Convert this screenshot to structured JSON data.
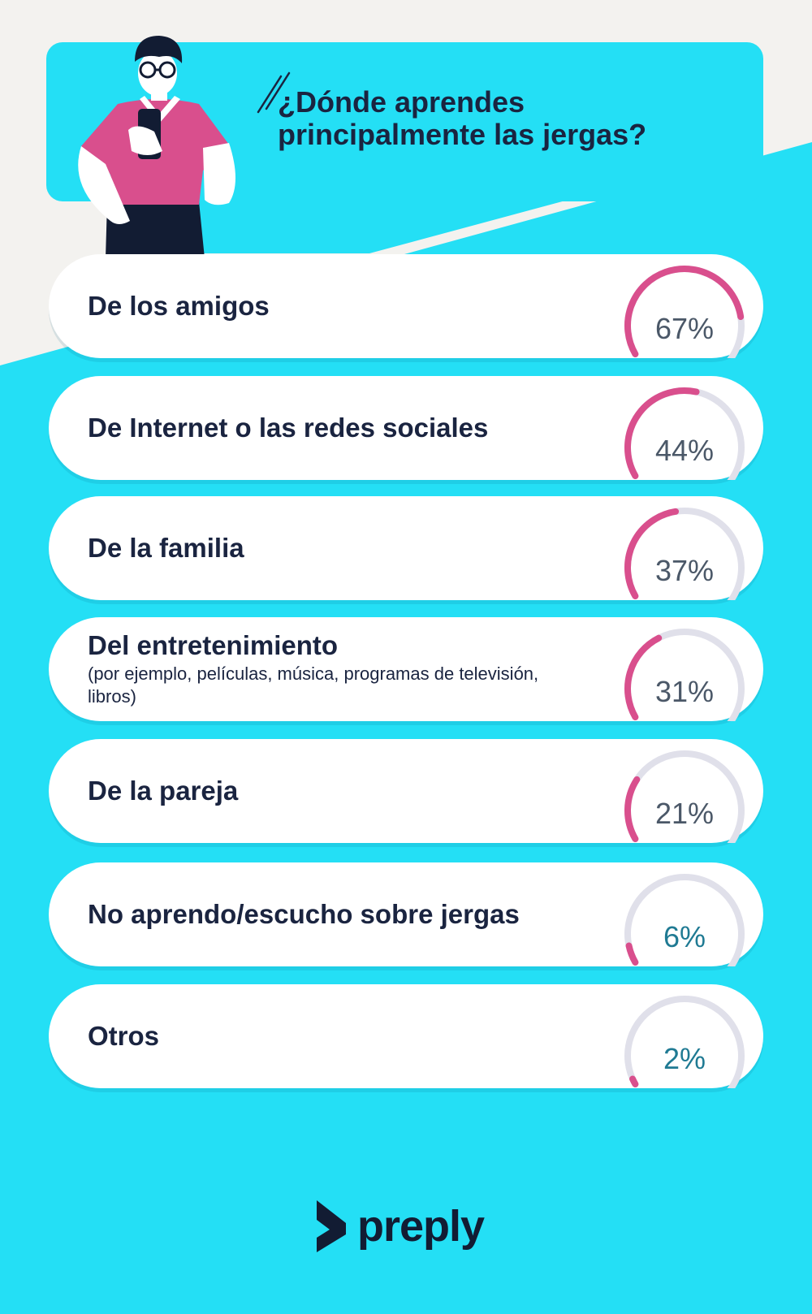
{
  "title": "¿Dónde aprendes principalmente las jergas?",
  "colors": {
    "background": "#24dff5",
    "beige": "#f3f2ef",
    "banner": "#24dff5",
    "card": "#ffffff",
    "text": "#1a2440",
    "arc_fill": "#d94f8d",
    "arc_track": "#e0e0ea",
    "value_text": "#4b5868",
    "value_text_low": "#1f7a93"
  },
  "chart_data": {
    "type": "bar",
    "title": "¿Dónde aprendes principalmente las jergas?",
    "value_unit": "%",
    "ylim": [
      0,
      100
    ],
    "categories": [
      "De los amigos",
      "De Internet o las redes sociales",
      "De la familia",
      "Del entretenimiento",
      "De la pareja",
      "No aprendo/escucho sobre jergas",
      "Otros"
    ],
    "subtitles": [
      "",
      "",
      "",
      "(por ejemplo, películas, música, programas de televisión, libros)",
      "",
      "",
      ""
    ],
    "values": [
      67,
      44,
      37,
      31,
      21,
      6,
      2
    ],
    "value_labels": [
      "67%",
      "44%",
      "37%",
      "31%",
      "21%",
      "6%",
      "2%"
    ]
  },
  "icons": {
    "illustration": "person-with-phone-illustration",
    "title_accent": "double-slash-accent-icon",
    "logo_mark": "preply-logo-icon"
  },
  "brand": {
    "logo_text": "preply"
  }
}
